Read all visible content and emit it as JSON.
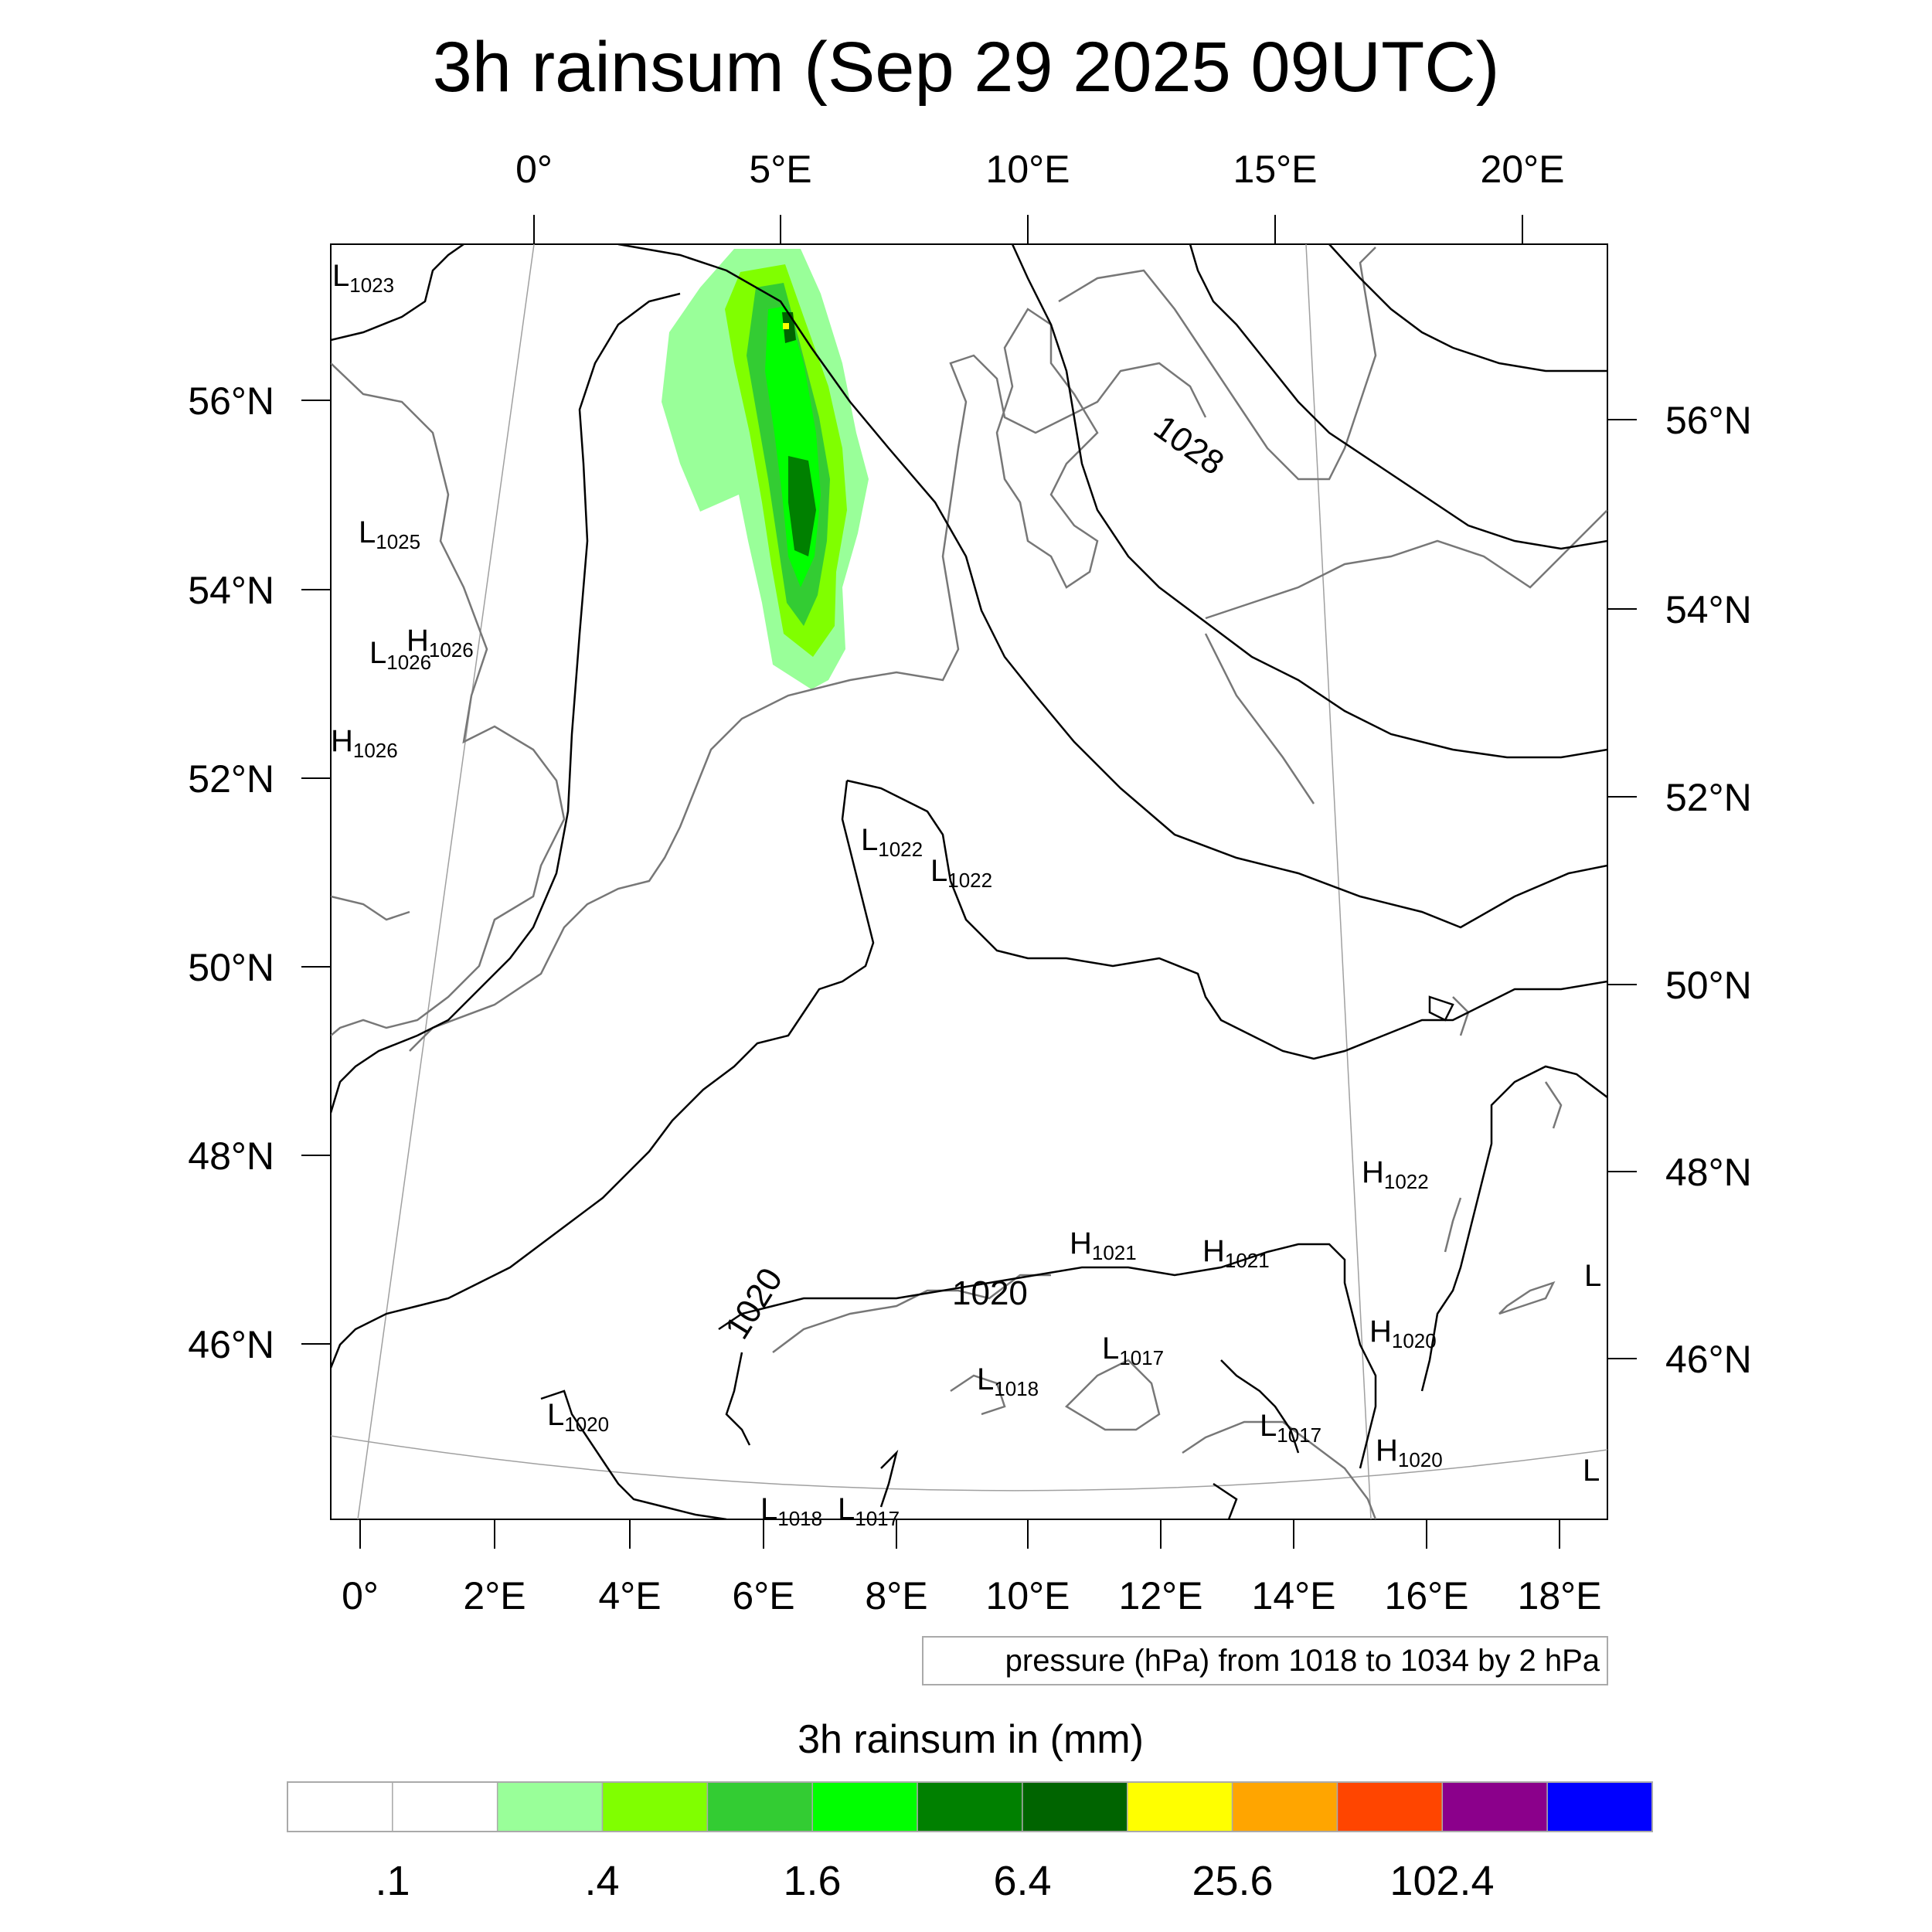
{
  "title": "3h rainsum (Sep 29 2025 09UTC)",
  "top_lon_labels": [
    "0°",
    "5°E",
    "10°E",
    "15°E",
    "20°E"
  ],
  "bottom_lon_labels": [
    "0°",
    "2°E",
    "4°E",
    "6°E",
    "8°E",
    "10°E",
    "12°E",
    "14°E",
    "16°E",
    "18°E"
  ],
  "left_lat_labels": [
    "56°N",
    "54°N",
    "52°N",
    "50°N",
    "48°N",
    "46°N"
  ],
  "right_lat_labels": [
    "56°N",
    "54°N",
    "52°N",
    "50°N",
    "48°N",
    "46°N"
  ],
  "pressure_centers": [
    {
      "letter": "L",
      "value": "1023"
    },
    {
      "letter": "L",
      "value": "1025"
    },
    {
      "letter": "L",
      "value": "1026"
    },
    {
      "letter": "H",
      "value": "1026"
    },
    {
      "letter": "H",
      "value": "1026"
    },
    {
      "letter": "L",
      "value": "1022"
    },
    {
      "letter": "L",
      "value": "1022"
    },
    {
      "letter": "H",
      "value": "1022"
    },
    {
      "letter": "H",
      "value": "1021"
    },
    {
      "letter": "H",
      "value": "1021"
    },
    {
      "letter": "H",
      "value": "1020"
    },
    {
      "letter": "L",
      "value": "1017"
    },
    {
      "letter": "L",
      "value": "1018"
    },
    {
      "letter": "L",
      "value": "1020"
    },
    {
      "letter": "L",
      "value": "1017"
    },
    {
      "letter": "H",
      "value": "1020"
    },
    {
      "letter": "L",
      "value": "1018"
    },
    {
      "letter": "L",
      "value": "1017"
    },
    {
      "letter": "L",
      "value": ""
    },
    {
      "letter": "L",
      "value": ""
    }
  ],
  "isobar_labels": [
    "1028",
    "1020",
    "1020"
  ],
  "contour_note": "pressure (hPa) from 1018 to 1034 by 2 hPa",
  "colorbar": {
    "title": "3h rainsum in (mm)",
    "colors": [
      "#ffffff",
      "#ffffff",
      "#99ff99",
      "#80ff00",
      "#33cc33",
      "#00ff00",
      "#008000",
      "#006400",
      "#ffff00",
      "#ffa500",
      "#ff4500",
      "#8b008b",
      "#0000ff"
    ],
    "tick_labels": [
      ".1",
      ".4",
      "1.6",
      "6.4",
      "25.6",
      "102.4"
    ]
  }
}
